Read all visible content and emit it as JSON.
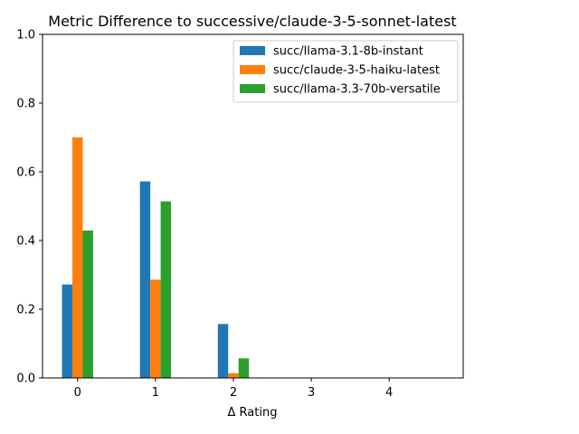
{
  "chart_data": {
    "type": "bar",
    "title": "Metric Difference to successive/claude-3-5-sonnet-latest",
    "xlabel": "Δ Rating",
    "ylabel": "",
    "categories": [
      "0",
      "1",
      "2",
      "3",
      "4"
    ],
    "x": [
      0,
      1,
      2,
      3,
      4
    ],
    "xlim": [
      -0.45,
      4.95
    ],
    "ylim": [
      0,
      1
    ],
    "yticks": [
      "0.0",
      "0.2",
      "0.4",
      "0.6",
      "0.8",
      "1.0"
    ],
    "legend_position": "top-right",
    "grid": false,
    "series": [
      {
        "name": "succ/llama-3.1-8b-instant",
        "color": "#1f77b4",
        "values": [
          0.272,
          0.572,
          0.157,
          0,
          0
        ]
      },
      {
        "name": "succ/claude-3-5-haiku-latest",
        "color": "#ff7f0e",
        "values": [
          0.7,
          0.286,
          0.014,
          0,
          0
        ]
      },
      {
        "name": "succ/llama-3.3-70b-versatile",
        "color": "#2ca02c",
        "values": [
          0.429,
          0.514,
          0.057,
          0,
          0
        ]
      }
    ]
  }
}
